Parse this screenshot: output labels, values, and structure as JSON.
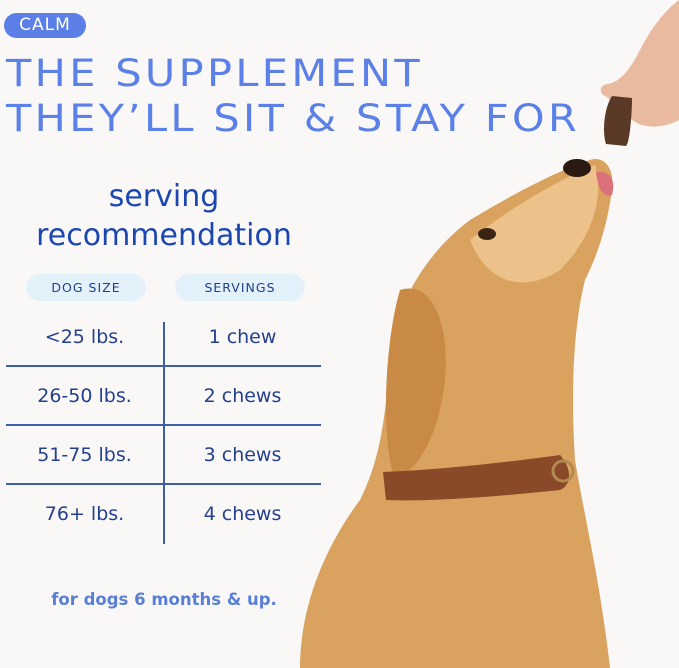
{
  "badge": "CALM",
  "headline": [
    "THE SUPPLEMENT",
    "THEY’LL SIT & STAY FOR"
  ],
  "section_title": [
    "serving",
    "recommendation"
  ],
  "table": {
    "headers": [
      "DOG SIZE",
      "SERVINGS"
    ],
    "rows": [
      [
        "<25 lbs.",
        "1 chew"
      ],
      [
        "26-50 lbs.",
        "2 chews"
      ],
      [
        "51-75 lbs.",
        "3 chews"
      ],
      [
        "76+ lbs.",
        "4 chews"
      ]
    ]
  },
  "footnote": "for dogs 6 months & up.",
  "colors": {
    "accent": "#5b7fe6",
    "dark_blue": "#1d47b0",
    "pill_bg": "#e3f1fb",
    "background": "#f9f8f6"
  }
}
